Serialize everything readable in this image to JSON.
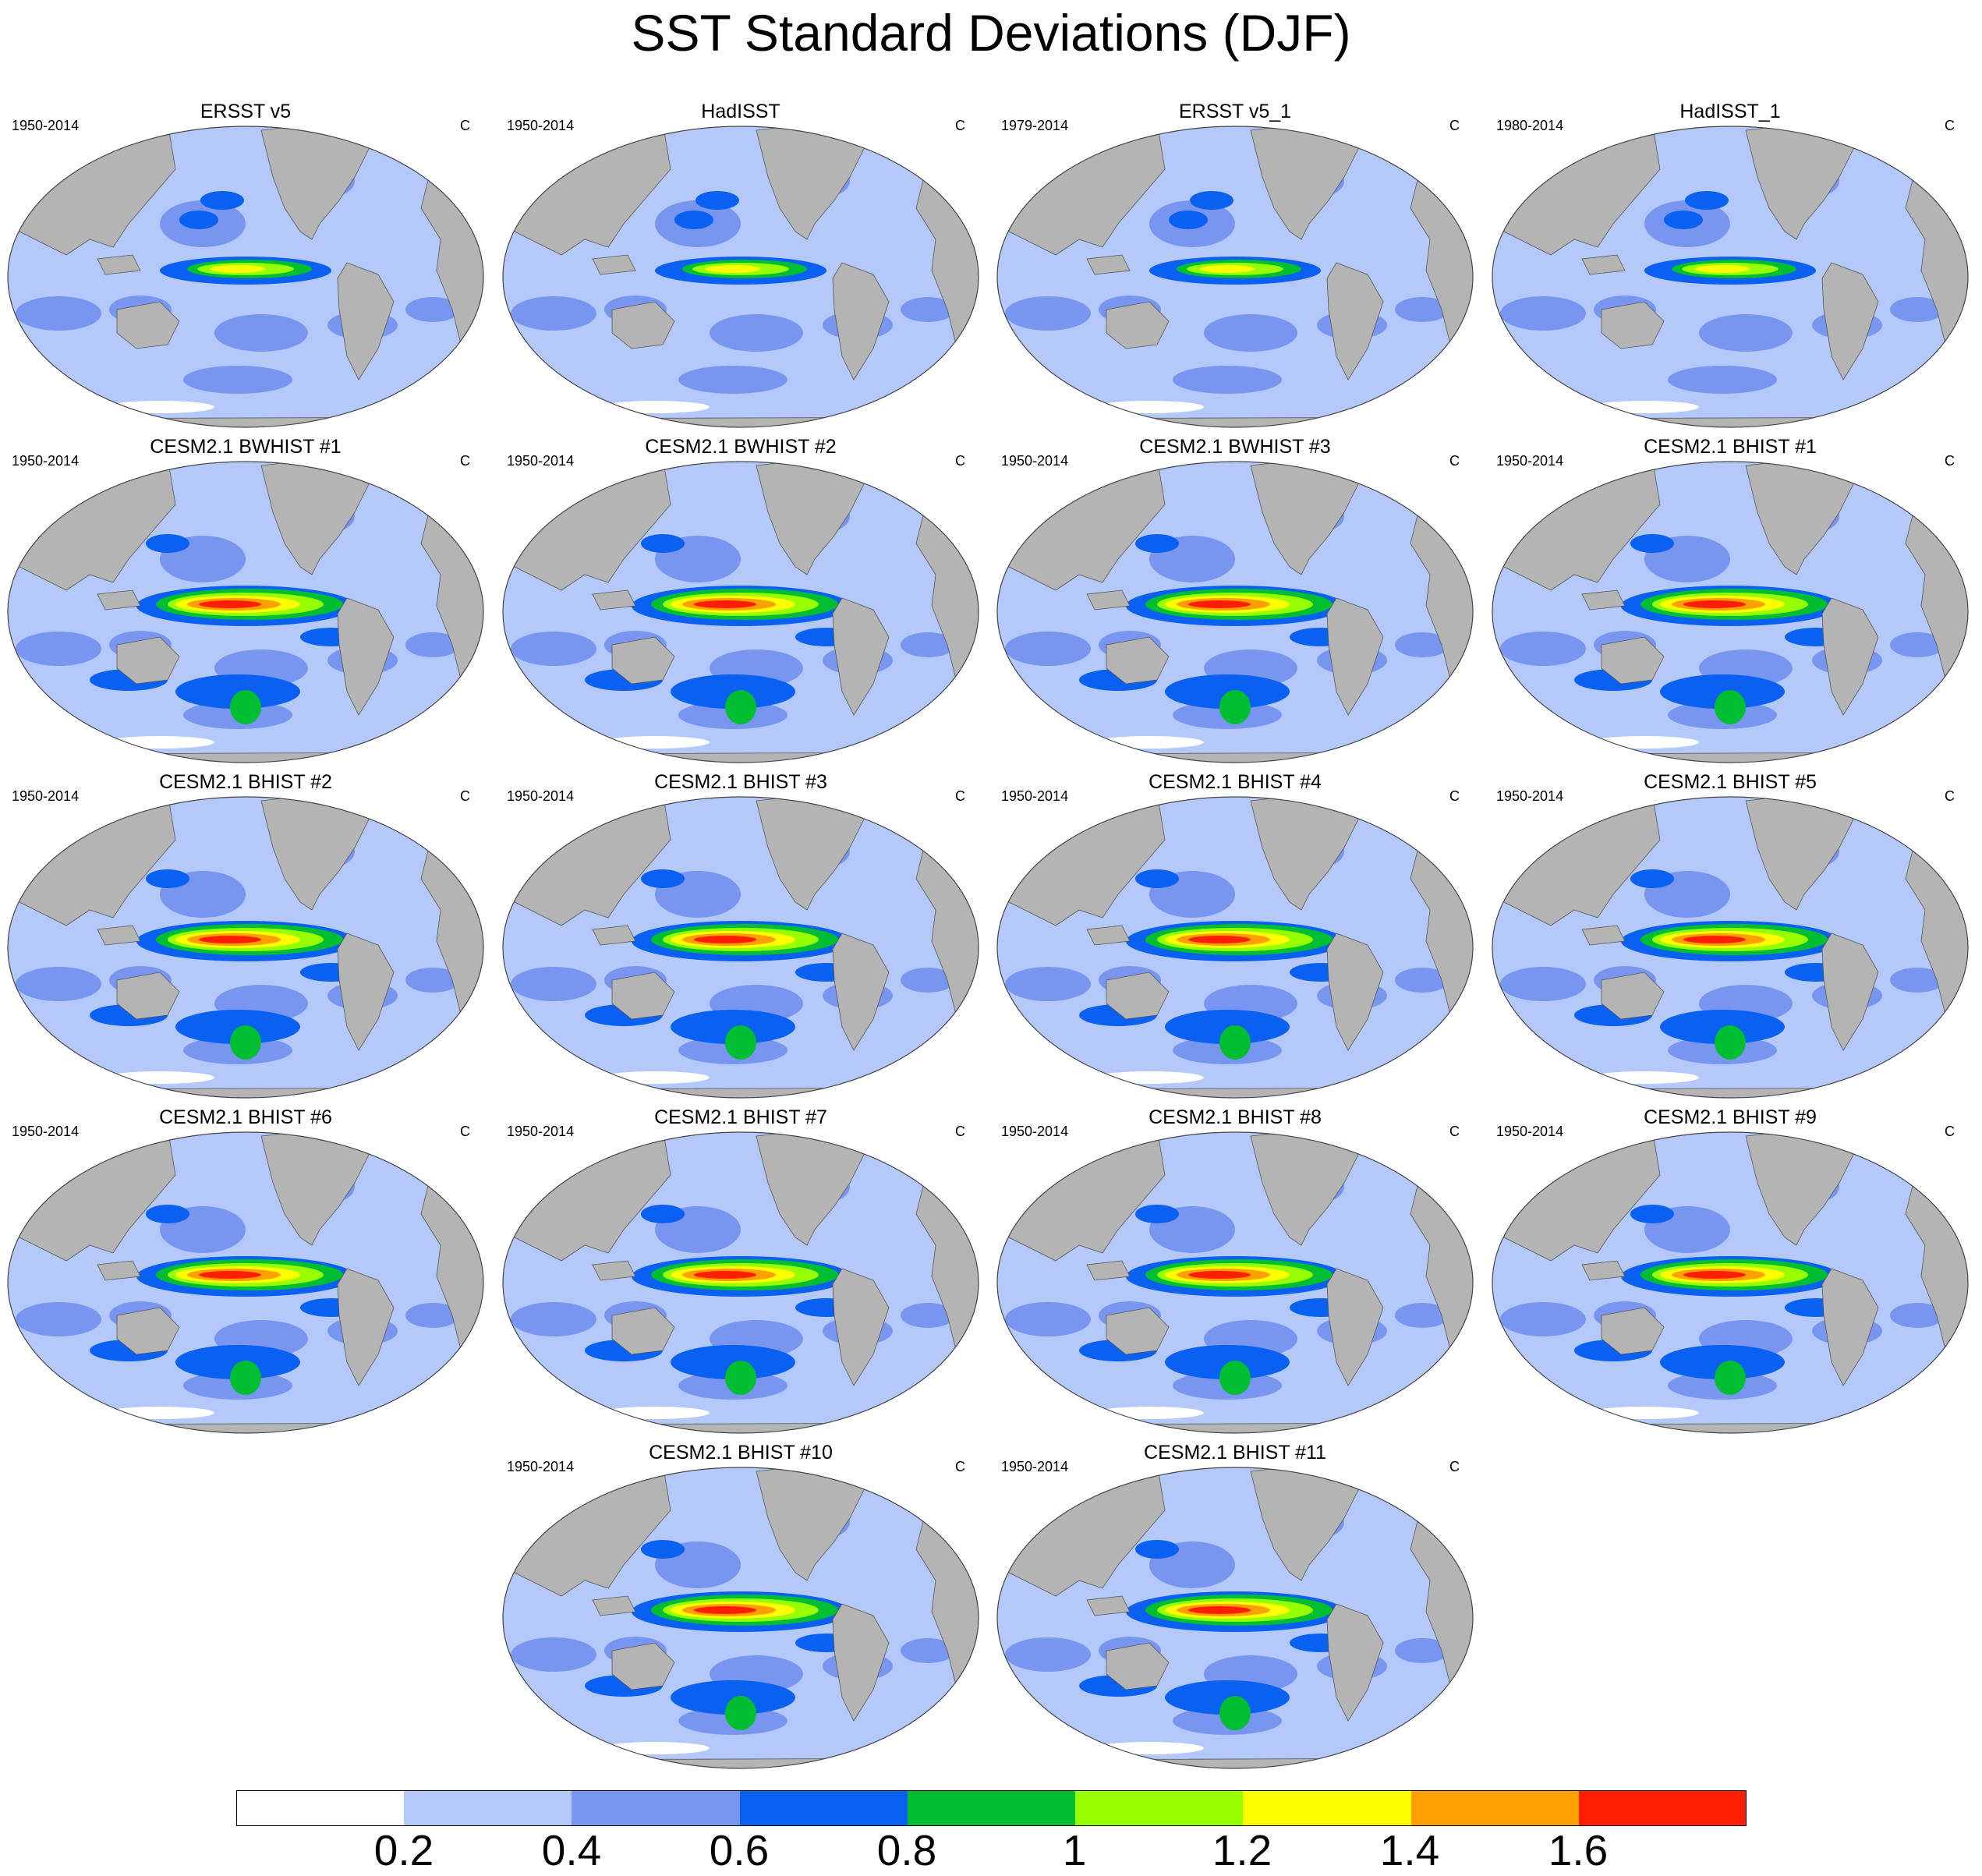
{
  "title": "SST Standard Deviations (DJF)",
  "colors": {
    "land": "#b4b4b4",
    "ocean_levels": [
      "#ffffff",
      "#b4c8fa",
      "#7896f0",
      "#0a60f0",
      "#00be32",
      "#96ff00",
      "#ffff00",
      "#ffa000",
      "#ff1e00"
    ]
  },
  "panels": [
    {
      "title": "ERSST v5",
      "period": "1950-2014",
      "units": "C",
      "kind": "obs"
    },
    {
      "title": "HadISST",
      "period": "1950-2014",
      "units": "C",
      "kind": "obs"
    },
    {
      "title": "ERSST v5_1",
      "period": "1979-2014",
      "units": "C",
      "kind": "obs"
    },
    {
      "title": "HadISST_1",
      "period": "1980-2014",
      "units": "C",
      "kind": "obs"
    },
    {
      "title": "CESM2.1 BWHIST #1",
      "period": "1950-2014",
      "units": "C",
      "kind": "model"
    },
    {
      "title": "CESM2.1 BWHIST #2",
      "period": "1950-2014",
      "units": "C",
      "kind": "model"
    },
    {
      "title": "CESM2.1 BWHIST #3",
      "period": "1950-2014",
      "units": "C",
      "kind": "model"
    },
    {
      "title": "CESM2.1 BHIST #1",
      "period": "1950-2014",
      "units": "C",
      "kind": "model"
    },
    {
      "title": "CESM2.1 BHIST #2",
      "period": "1950-2014",
      "units": "C",
      "kind": "model"
    },
    {
      "title": "CESM2.1 BHIST #3",
      "period": "1950-2014",
      "units": "C",
      "kind": "model"
    },
    {
      "title": "CESM2.1 BHIST #4",
      "period": "1950-2014",
      "units": "C",
      "kind": "model"
    },
    {
      "title": "CESM2.1 BHIST #5",
      "period": "1950-2014",
      "units": "C",
      "kind": "model"
    },
    {
      "title": "CESM2.1 BHIST #6",
      "period": "1950-2014",
      "units": "C",
      "kind": "model"
    },
    {
      "title": "CESM2.1 BHIST #7",
      "period": "1950-2014",
      "units": "C",
      "kind": "model"
    },
    {
      "title": "CESM2.1 BHIST #8",
      "period": "1950-2014",
      "units": "C",
      "kind": "model"
    },
    {
      "title": "CESM2.1 BHIST #9",
      "period": "1950-2014",
      "units": "C",
      "kind": "model"
    },
    {
      "title": "CESM2.1 BHIST #10",
      "period": "1950-2014",
      "units": "C",
      "kind": "model"
    },
    {
      "title": "CESM2.1 BHIST #11",
      "period": "1950-2014",
      "units": "C",
      "kind": "model"
    }
  ],
  "colorbar": {
    "labels": [
      "0.2",
      "0.4",
      "0.6",
      "0.8",
      "1",
      "1.2",
      "1.4",
      "1.6"
    ]
  }
}
